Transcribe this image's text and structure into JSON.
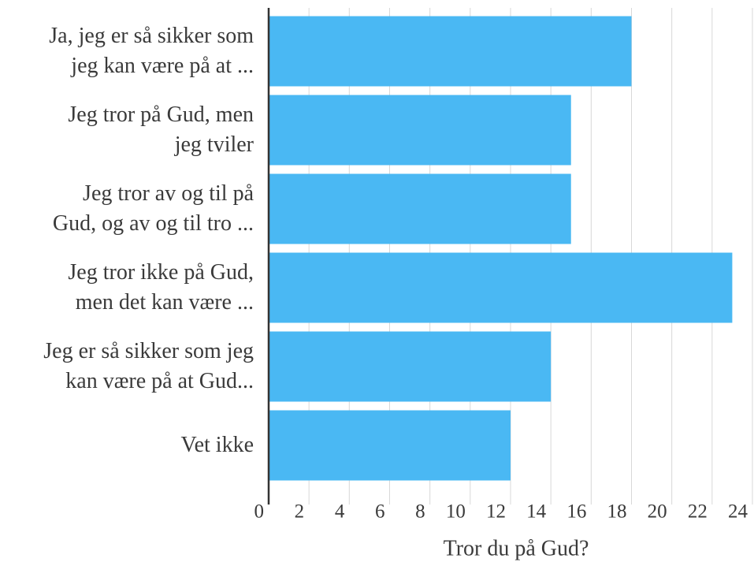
{
  "chart_data": {
    "type": "bar",
    "orientation": "horizontal",
    "xlabel": "Tror du på Gud?",
    "categories": [
      "Ja, jeg er så sikker som\njeg kan være på at ...",
      "Jeg tror på Gud, men\njeg tviler",
      "Jeg tror av og til på\nGud, og av og til tro ...",
      "Jeg tror ikke på Gud,\nmen det kan være ...",
      "Jeg er så sikker som jeg\nkan være på at Gud...",
      "Vet ikke"
    ],
    "values": [
      18,
      15,
      15,
      23,
      14,
      12
    ],
    "color": "#4ab8f3",
    "xlim": [
      0,
      24
    ],
    "xticks": [
      0,
      2,
      4,
      6,
      8,
      10,
      12,
      14,
      16,
      18,
      20,
      22,
      24
    ],
    "grid": true
  }
}
